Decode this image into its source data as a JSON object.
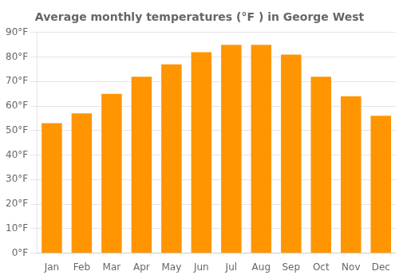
{
  "chart_data": {
    "type": "bar",
    "title": "Average monthly temperatures (°F ) in George West",
    "categories": [
      "Jan",
      "Feb",
      "Mar",
      "Apr",
      "May",
      "Jun",
      "Jul",
      "Aug",
      "Sep",
      "Oct",
      "Nov",
      "Dec"
    ],
    "values": [
      53,
      57,
      65,
      72,
      77,
      82,
      85,
      85,
      81,
      72,
      64,
      56
    ],
    "color": "#FF9500",
    "ylim": [
      0,
      90
    ],
    "yticks": [
      {
        "value": 0,
        "label": "0°F"
      },
      {
        "value": 10,
        "label": "10°F"
      },
      {
        "value": 20,
        "label": "20°F"
      },
      {
        "value": 30,
        "label": "30°F"
      },
      {
        "value": 40,
        "label": "40°F"
      },
      {
        "value": 50,
        "label": "50°F"
      },
      {
        "value": 60,
        "label": "60°F"
      },
      {
        "value": 70,
        "label": "70°F"
      },
      {
        "value": 80,
        "label": "80°F"
      },
      {
        "value": 90,
        "label": "90°F"
      }
    ],
    "grid": true
  }
}
